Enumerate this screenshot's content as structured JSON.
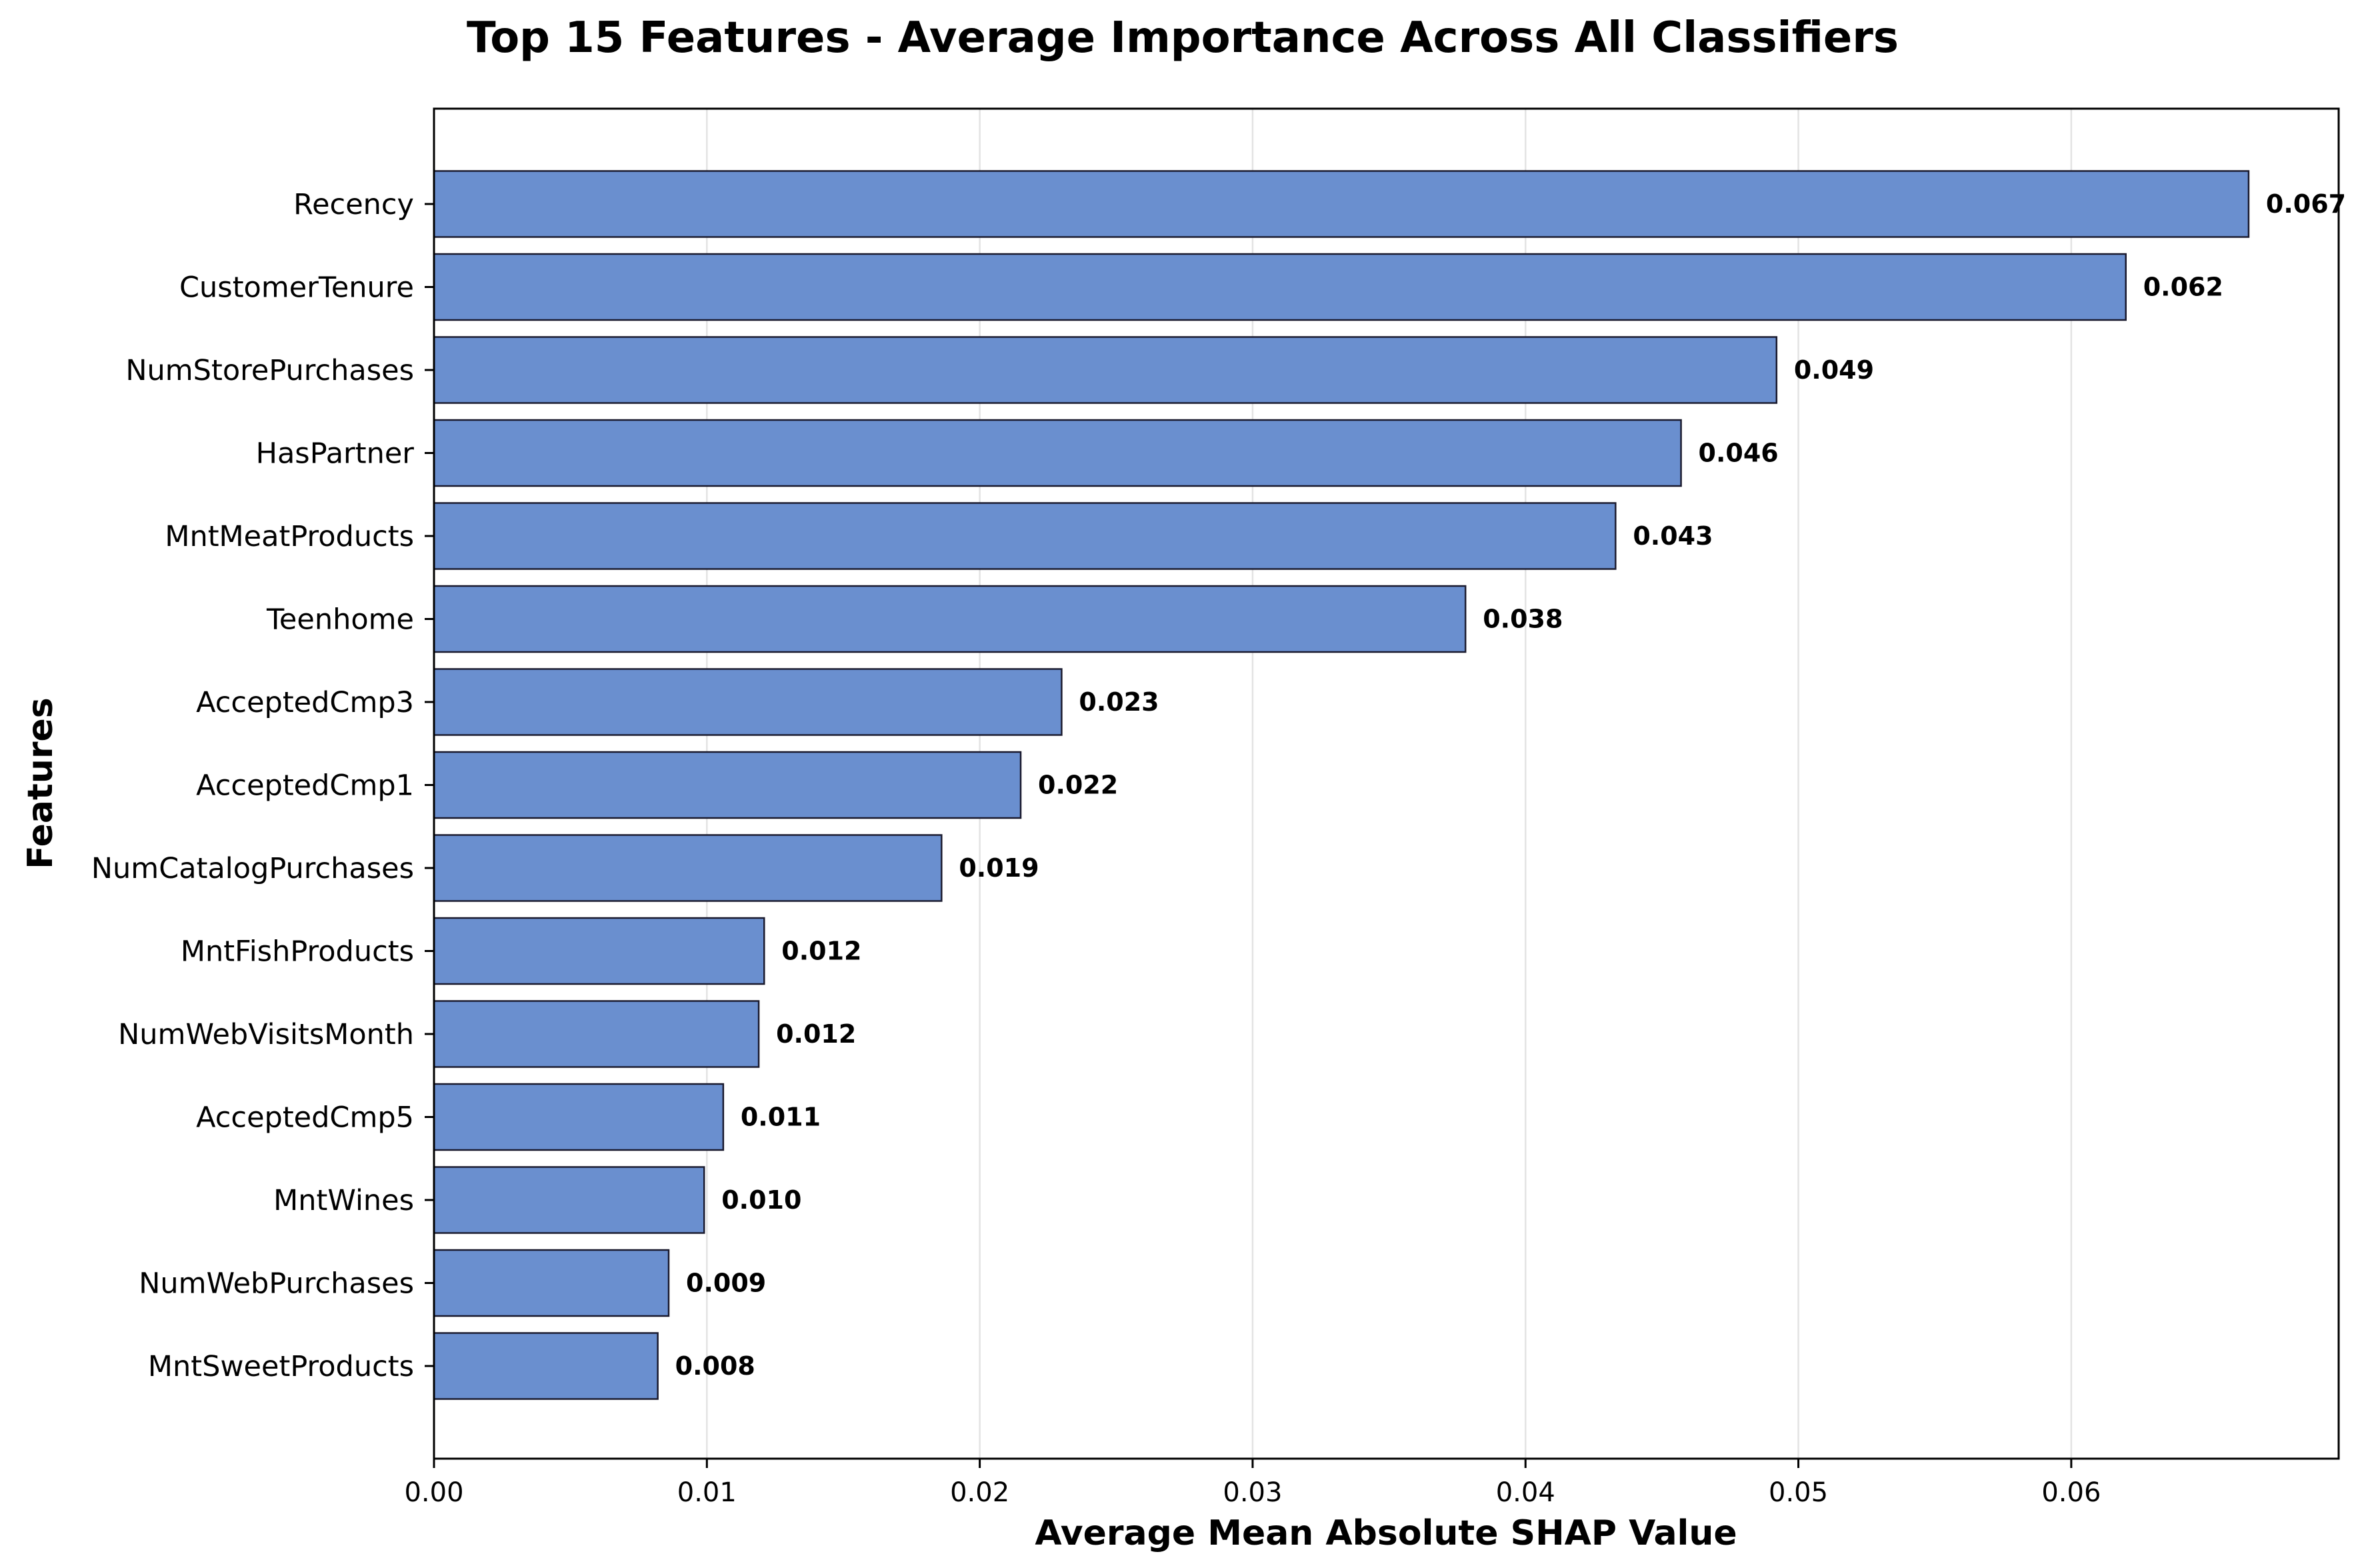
{
  "chart_data": {
    "type": "bar",
    "orientation": "horizontal",
    "title": "Top 15 Features - Average Importance Across All Classifiers",
    "xlabel": "Average Mean Absolute SHAP Value",
    "ylabel": "Features",
    "xlim": [
      0,
      0.0698
    ],
    "grid": "vertical",
    "categories": [
      "Recency",
      "CustomerTenure",
      "NumStorePurchases",
      "HasPartner",
      "MntMeatProducts",
      "Teenhome",
      "AcceptedCmp3",
      "AcceptedCmp1",
      "NumCatalogPurchases",
      "MntFishProducts",
      "NumWebVisitsMonth",
      "AcceptedCmp5",
      "MntWines",
      "NumWebPurchases",
      "MntSweetProducts"
    ],
    "values": [
      0.0665,
      0.062,
      0.0492,
      0.0457,
      0.0433,
      0.0378,
      0.023,
      0.0215,
      0.0186,
      0.0121,
      0.0119,
      0.0106,
      0.0099,
      0.0086,
      0.0082
    ],
    "data_labels": [
      "0.067",
      "0.062",
      "0.049",
      "0.046",
      "0.043",
      "0.038",
      "0.023",
      "0.022",
      "0.019",
      "0.012",
      "0.012",
      "0.011",
      "0.010",
      "0.009",
      "0.008"
    ],
    "xticks": [
      0.0,
      0.01,
      0.02,
      0.03,
      0.04,
      0.05,
      0.06
    ],
    "xtick_labels": [
      "0.00",
      "0.01",
      "0.02",
      "0.03",
      "0.04",
      "0.05",
      "0.06"
    ],
    "colors": {
      "bar_fill": "#6a8fcf",
      "bar_edge": "#1a1a2e",
      "grid": "#e3e3e3",
      "axis": "#000000"
    }
  }
}
